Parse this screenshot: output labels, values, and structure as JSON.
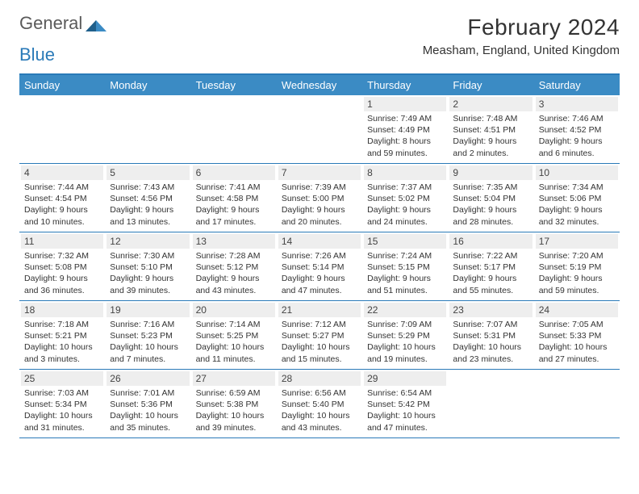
{
  "logo": {
    "word1": "General",
    "word2": "Blue"
  },
  "title": "February 2024",
  "location": "Measham, England, United Kingdom",
  "colors": {
    "header_bar": "#3b8bc4",
    "rule": "#2a7ab8",
    "daynum_bg": "#eeeeee",
    "text": "#333333",
    "logo_gray": "#5a5a5a"
  },
  "day_names": [
    "Sunday",
    "Monday",
    "Tuesday",
    "Wednesday",
    "Thursday",
    "Friday",
    "Saturday"
  ],
  "weeks": [
    [
      {
        "n": "",
        "sr": "",
        "ss": "",
        "dl": ""
      },
      {
        "n": "",
        "sr": "",
        "ss": "",
        "dl": ""
      },
      {
        "n": "",
        "sr": "",
        "ss": "",
        "dl": ""
      },
      {
        "n": "",
        "sr": "",
        "ss": "",
        "dl": ""
      },
      {
        "n": "1",
        "sr": "Sunrise: 7:49 AM",
        "ss": "Sunset: 4:49 PM",
        "dl": "Daylight: 8 hours and 59 minutes."
      },
      {
        "n": "2",
        "sr": "Sunrise: 7:48 AM",
        "ss": "Sunset: 4:51 PM",
        "dl": "Daylight: 9 hours and 2 minutes."
      },
      {
        "n": "3",
        "sr": "Sunrise: 7:46 AM",
        "ss": "Sunset: 4:52 PM",
        "dl": "Daylight: 9 hours and 6 minutes."
      }
    ],
    [
      {
        "n": "4",
        "sr": "Sunrise: 7:44 AM",
        "ss": "Sunset: 4:54 PM",
        "dl": "Daylight: 9 hours and 10 minutes."
      },
      {
        "n": "5",
        "sr": "Sunrise: 7:43 AM",
        "ss": "Sunset: 4:56 PM",
        "dl": "Daylight: 9 hours and 13 minutes."
      },
      {
        "n": "6",
        "sr": "Sunrise: 7:41 AM",
        "ss": "Sunset: 4:58 PM",
        "dl": "Daylight: 9 hours and 17 minutes."
      },
      {
        "n": "7",
        "sr": "Sunrise: 7:39 AM",
        "ss": "Sunset: 5:00 PM",
        "dl": "Daylight: 9 hours and 20 minutes."
      },
      {
        "n": "8",
        "sr": "Sunrise: 7:37 AM",
        "ss": "Sunset: 5:02 PM",
        "dl": "Daylight: 9 hours and 24 minutes."
      },
      {
        "n": "9",
        "sr": "Sunrise: 7:35 AM",
        "ss": "Sunset: 5:04 PM",
        "dl": "Daylight: 9 hours and 28 minutes."
      },
      {
        "n": "10",
        "sr": "Sunrise: 7:34 AM",
        "ss": "Sunset: 5:06 PM",
        "dl": "Daylight: 9 hours and 32 minutes."
      }
    ],
    [
      {
        "n": "11",
        "sr": "Sunrise: 7:32 AM",
        "ss": "Sunset: 5:08 PM",
        "dl": "Daylight: 9 hours and 36 minutes."
      },
      {
        "n": "12",
        "sr": "Sunrise: 7:30 AM",
        "ss": "Sunset: 5:10 PM",
        "dl": "Daylight: 9 hours and 39 minutes."
      },
      {
        "n": "13",
        "sr": "Sunrise: 7:28 AM",
        "ss": "Sunset: 5:12 PM",
        "dl": "Daylight: 9 hours and 43 minutes."
      },
      {
        "n": "14",
        "sr": "Sunrise: 7:26 AM",
        "ss": "Sunset: 5:14 PM",
        "dl": "Daylight: 9 hours and 47 minutes."
      },
      {
        "n": "15",
        "sr": "Sunrise: 7:24 AM",
        "ss": "Sunset: 5:15 PM",
        "dl": "Daylight: 9 hours and 51 minutes."
      },
      {
        "n": "16",
        "sr": "Sunrise: 7:22 AM",
        "ss": "Sunset: 5:17 PM",
        "dl": "Daylight: 9 hours and 55 minutes."
      },
      {
        "n": "17",
        "sr": "Sunrise: 7:20 AM",
        "ss": "Sunset: 5:19 PM",
        "dl": "Daylight: 9 hours and 59 minutes."
      }
    ],
    [
      {
        "n": "18",
        "sr": "Sunrise: 7:18 AM",
        "ss": "Sunset: 5:21 PM",
        "dl": "Daylight: 10 hours and 3 minutes."
      },
      {
        "n": "19",
        "sr": "Sunrise: 7:16 AM",
        "ss": "Sunset: 5:23 PM",
        "dl": "Daylight: 10 hours and 7 minutes."
      },
      {
        "n": "20",
        "sr": "Sunrise: 7:14 AM",
        "ss": "Sunset: 5:25 PM",
        "dl": "Daylight: 10 hours and 11 minutes."
      },
      {
        "n": "21",
        "sr": "Sunrise: 7:12 AM",
        "ss": "Sunset: 5:27 PM",
        "dl": "Daylight: 10 hours and 15 minutes."
      },
      {
        "n": "22",
        "sr": "Sunrise: 7:09 AM",
        "ss": "Sunset: 5:29 PM",
        "dl": "Daylight: 10 hours and 19 minutes."
      },
      {
        "n": "23",
        "sr": "Sunrise: 7:07 AM",
        "ss": "Sunset: 5:31 PM",
        "dl": "Daylight: 10 hours and 23 minutes."
      },
      {
        "n": "24",
        "sr": "Sunrise: 7:05 AM",
        "ss": "Sunset: 5:33 PM",
        "dl": "Daylight: 10 hours and 27 minutes."
      }
    ],
    [
      {
        "n": "25",
        "sr": "Sunrise: 7:03 AM",
        "ss": "Sunset: 5:34 PM",
        "dl": "Daylight: 10 hours and 31 minutes."
      },
      {
        "n": "26",
        "sr": "Sunrise: 7:01 AM",
        "ss": "Sunset: 5:36 PM",
        "dl": "Daylight: 10 hours and 35 minutes."
      },
      {
        "n": "27",
        "sr": "Sunrise: 6:59 AM",
        "ss": "Sunset: 5:38 PM",
        "dl": "Daylight: 10 hours and 39 minutes."
      },
      {
        "n": "28",
        "sr": "Sunrise: 6:56 AM",
        "ss": "Sunset: 5:40 PM",
        "dl": "Daylight: 10 hours and 43 minutes."
      },
      {
        "n": "29",
        "sr": "Sunrise: 6:54 AM",
        "ss": "Sunset: 5:42 PM",
        "dl": "Daylight: 10 hours and 47 minutes."
      },
      {
        "n": "",
        "sr": "",
        "ss": "",
        "dl": ""
      },
      {
        "n": "",
        "sr": "",
        "ss": "",
        "dl": ""
      }
    ]
  ]
}
